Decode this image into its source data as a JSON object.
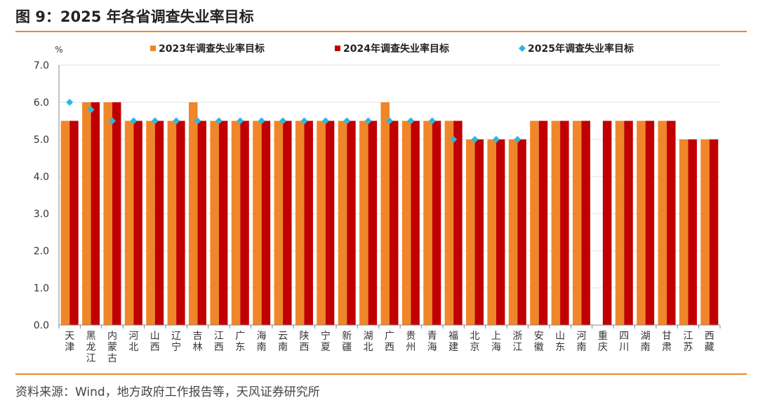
{
  "figure": {
    "title": "图 9：2025 年各省调查失业率目标",
    "source": "资料来源：Wind，地方政府工作报告等，天风证券研究所"
  },
  "colors": {
    "series_2023": "#f0862a",
    "series_2024": "#c00000",
    "series_2025": "#2eb6e0",
    "rule": "#e8892e",
    "grid": "#e2e2e2",
    "axis": "#888888"
  },
  "chart_data": {
    "type": "bar",
    "ylabel": "%",
    "ylim": [
      0,
      7
    ],
    "yticks": [
      "0.0",
      "1.0",
      "2.0",
      "3.0",
      "4.0",
      "5.0",
      "6.0",
      "7.0"
    ],
    "grid": true,
    "legend_position": "top",
    "categories": [
      "天津",
      "黑龙江",
      "内蒙古",
      "河北",
      "山西",
      "辽宁",
      "吉林",
      "江西",
      "广东",
      "海南",
      "云南",
      "陕西",
      "宁夏",
      "新疆",
      "湖北",
      "广西",
      "贵州",
      "青海",
      "福建",
      "北京",
      "上海",
      "浙江",
      "安徽",
      "山东",
      "河南",
      "重庆",
      "四川",
      "湖南",
      "甘肃",
      "江苏",
      "西藏"
    ],
    "series": [
      {
        "name": "2023年调查失业率目标",
        "kind": "bar",
        "values": [
          5.5,
          6.0,
          6.0,
          5.5,
          5.5,
          5.5,
          6.0,
          5.5,
          5.5,
          5.5,
          5.5,
          5.5,
          5.5,
          5.5,
          5.5,
          6.0,
          5.5,
          5.5,
          5.5,
          5.0,
          5.0,
          5.0,
          5.5,
          5.5,
          5.5,
          null,
          5.5,
          5.5,
          5.5,
          5.0,
          5.0
        ]
      },
      {
        "name": "2024年调查失业率目标",
        "kind": "bar",
        "values": [
          5.5,
          6.0,
          6.0,
          5.5,
          5.5,
          5.5,
          5.5,
          5.5,
          5.5,
          5.5,
          5.5,
          5.5,
          5.5,
          5.5,
          5.5,
          5.5,
          5.5,
          5.5,
          5.5,
          5.0,
          5.0,
          5.0,
          5.5,
          5.5,
          5.5,
          5.5,
          5.5,
          5.5,
          5.5,
          5.0,
          5.0
        ]
      },
      {
        "name": "2025年调查失业率目标",
        "kind": "marker",
        "values": [
          6.0,
          5.8,
          5.5,
          5.5,
          5.5,
          5.5,
          5.5,
          5.5,
          5.5,
          5.5,
          5.5,
          5.5,
          5.5,
          5.5,
          5.5,
          5.5,
          5.5,
          5.5,
          5.0,
          5.0,
          5.0,
          5.0,
          null,
          null,
          null,
          null,
          null,
          null,
          null,
          null,
          null
        ]
      }
    ]
  }
}
